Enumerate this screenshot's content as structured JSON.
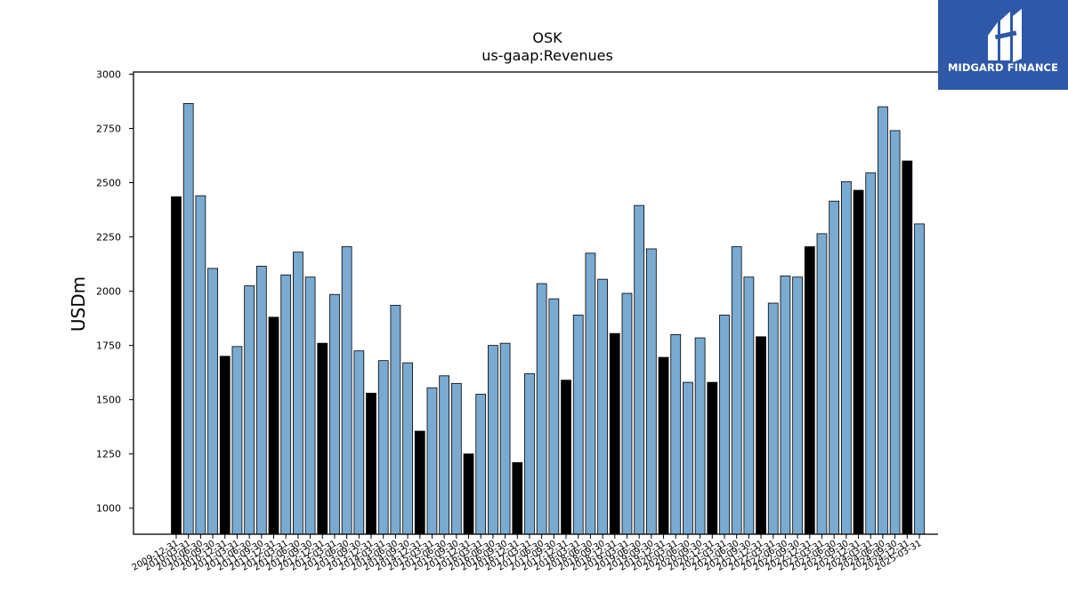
{
  "logo": {
    "text": "MIDGARD FINANCE",
    "background": "#2f58a8"
  },
  "chart_data": {
    "type": "bar",
    "title": "OSK",
    "subtitle": "us-gaap:Revenues",
    "xlabel": "",
    "ylabel": "USDm",
    "ylim": [
      880,
      3010
    ],
    "yticks": [
      1000,
      1250,
      1500,
      1750,
      2000,
      2250,
      2500,
      2750,
      3000
    ],
    "grid": false,
    "colors": {
      "quarter": "#7aaad0",
      "annual": "#000000",
      "edge": "#000000"
    },
    "categories": [
      "2009-12-31",
      "2010-03-31",
      "2010-06-30",
      "2010-09-30",
      "2010-12-31",
      "2011-03-31",
      "2011-06-30",
      "2011-09-30",
      "2011-12-31",
      "2012-03-31",
      "2012-06-30",
      "2012-09-30",
      "2012-12-31",
      "2013-03-31",
      "2013-06-30",
      "2013-09-30",
      "2013-12-31",
      "2014-03-31",
      "2014-06-30",
      "2014-09-30",
      "2014-12-31",
      "2015-03-31",
      "2015-06-30",
      "2015-09-30",
      "2015-12-31",
      "2016-03-31",
      "2016-06-30",
      "2016-09-30",
      "2016-12-31",
      "2017-03-31",
      "2017-06-30",
      "2017-09-30",
      "2017-12-31",
      "2018-03-31",
      "2018-06-30",
      "2018-09-30",
      "2018-12-31",
      "2019-03-31",
      "2019-06-30",
      "2019-09-30",
      "2019-12-31",
      "2020-03-31",
      "2020-06-30",
      "2020-09-30",
      "2020-12-31",
      "2021-03-31",
      "2021-06-30",
      "2021-09-30",
      "2021-12-31",
      "2022-03-31",
      "2022-06-30",
      "2022-09-30",
      "2022-12-31",
      "2023-03-31",
      "2023-06-30",
      "2023-09-30",
      "2023-12-31",
      "2024-03-31",
      "2024-06-30",
      "2024-09-30",
      "2024-12-31",
      "2025-03-31"
    ],
    "values": [
      2435,
      2865,
      2440,
      2105,
      1700,
      1745,
      2025,
      2115,
      1880,
      2075,
      2180,
      2065,
      1760,
      1985,
      2205,
      1725,
      1530,
      1680,
      1935,
      1670,
      1355,
      1555,
      1610,
      1575,
      1250,
      1525,
      1750,
      1760,
      1210,
      1620,
      2035,
      1965,
      1590,
      1890,
      2175,
      2055,
      1805,
      1990,
      2395,
      2195,
      1695,
      1800,
      1580,
      1785,
      1580,
      1890,
      2205,
      2065,
      1790,
      1945,
      2070,
      2065,
      2205,
      2265,
      2415,
      2505,
      2465,
      2545,
      2850,
      2740,
      2600,
      2310
    ],
    "annual_flags": [
      1,
      0,
      0,
      0,
      1,
      0,
      0,
      0,
      1,
      0,
      0,
      0,
      1,
      0,
      0,
      0,
      1,
      0,
      0,
      0,
      1,
      0,
      0,
      0,
      1,
      0,
      0,
      0,
      1,
      0,
      0,
      0,
      1,
      0,
      0,
      0,
      1,
      0,
      0,
      0,
      1,
      0,
      0,
      0,
      1,
      0,
      0,
      0,
      1,
      0,
      0,
      0,
      1,
      0,
      0,
      0,
      1,
      0,
      0,
      0,
      1,
      0
    ]
  }
}
